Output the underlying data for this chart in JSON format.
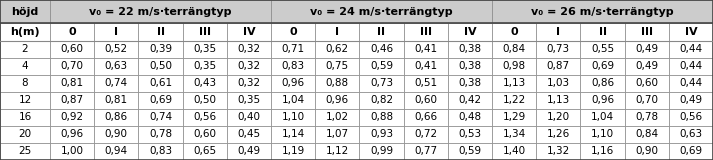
{
  "header_row1_labels": [
    "höjd",
    "v_b = 22 m/s·terrängtyp",
    "v_b = 24 m/s·terrängtyp",
    "v_b = 26 m/s·terrängtyp"
  ],
  "header_row2": [
    "h(m)",
    "0",
    "I",
    "II",
    "III",
    "IV",
    "0",
    "I",
    "II",
    "III",
    "IV",
    "0",
    "I",
    "II",
    "III",
    "IV"
  ],
  "rows": [
    [
      "2",
      "0,60",
      "0,52",
      "0,39",
      "0,35",
      "0,32",
      "0,71",
      "0,62",
      "0,46",
      "0,41",
      "0,38",
      "0,84",
      "0,73",
      "0,55",
      "0,49",
      "0,44"
    ],
    [
      "4",
      "0,70",
      "0,63",
      "0,50",
      "0,35",
      "0,32",
      "0,83",
      "0,75",
      "0,59",
      "0,41",
      "0,38",
      "0,98",
      "0,87",
      "0,69",
      "0,49",
      "0,44"
    ],
    [
      "8",
      "0,81",
      "0,74",
      "0,61",
      "0,43",
      "0,32",
      "0,96",
      "0,88",
      "0,73",
      "0,51",
      "0,38",
      "1,13",
      "1,03",
      "0,86",
      "0,60",
      "0,44"
    ],
    [
      "12",
      "0,87",
      "0,81",
      "0,69",
      "0,50",
      "0,35",
      "1,04",
      "0,96",
      "0,82",
      "0,60",
      "0,42",
      "1,22",
      "1,13",
      "0,96",
      "0,70",
      "0,49"
    ],
    [
      "16",
      "0,92",
      "0,86",
      "0,74",
      "0,56",
      "0,40",
      "1,10",
      "1,02",
      "0,88",
      "0,66",
      "0,48",
      "1,29",
      "1,20",
      "1,04",
      "0,78",
      "0,56"
    ],
    [
      "20",
      "0,96",
      "0,90",
      "0,78",
      "0,60",
      "0,45",
      "1,14",
      "1,07",
      "0,93",
      "0,72",
      "0,53",
      "1,34",
      "1,26",
      "1,10",
      "0,84",
      "0,63"
    ],
    [
      "25",
      "1,00",
      "0,94",
      "0,83",
      "0,65",
      "0,49",
      "1,19",
      "1,12",
      "0,99",
      "0,77",
      "0,59",
      "1,40",
      "1,32",
      "1,16",
      "0,90",
      "0,69"
    ]
  ],
  "header_bg": "#cccccc",
  "cell_bg": "#ffffff",
  "border_color": "#888888",
  "text_color": "#000000",
  "header1_fontsize": 8.0,
  "header2_fontsize": 8.0,
  "cell_fontsize": 7.5,
  "fig_width": 7.13,
  "fig_height": 1.6
}
